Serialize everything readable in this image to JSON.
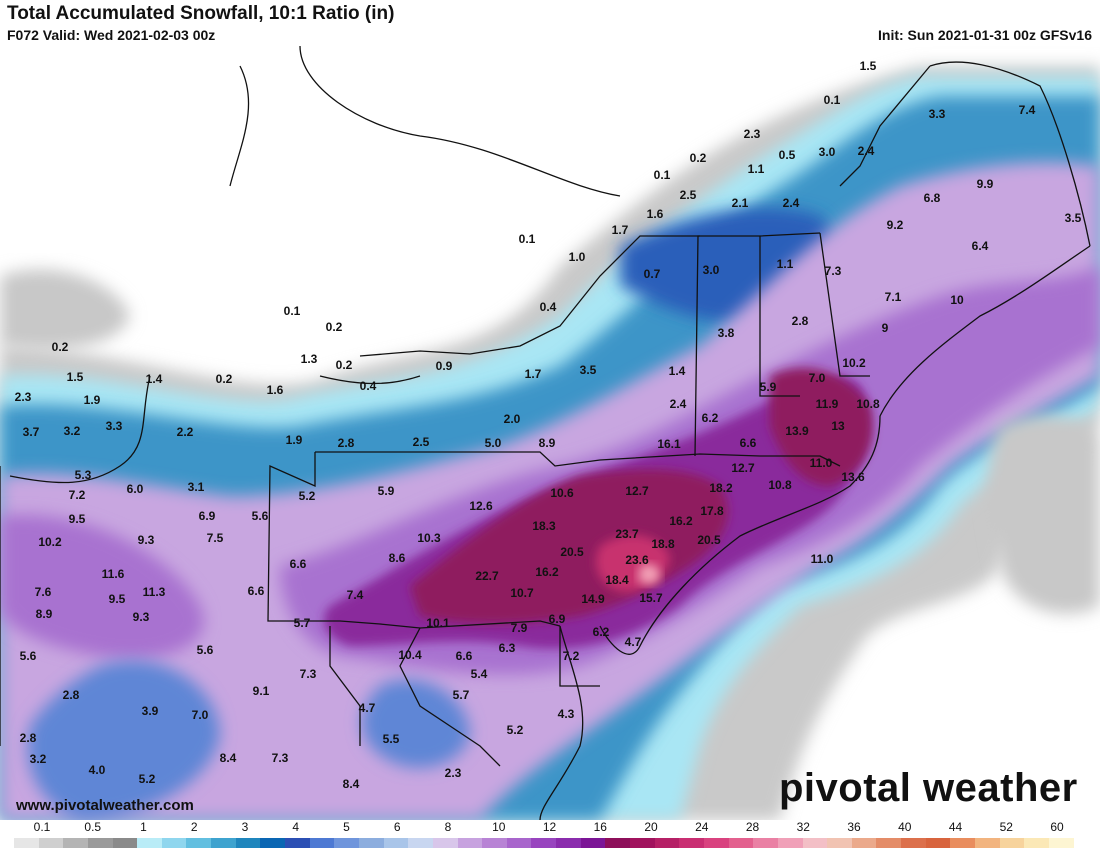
{
  "header": {
    "title": "Total Accumulated Snowfall, 10:1 Ratio (in)",
    "valid": "F072 Valid: Wed 2021-02-03 00z",
    "init": "Init: Sun 2021-01-31 00z GFSv16"
  },
  "footer": {
    "website": "www.pivotalweather.com",
    "brand": "pivotal weather"
  },
  "legend": {
    "labels": [
      "0.1",
      "0.5",
      "1",
      "2",
      "3",
      "4",
      "5",
      "6",
      "8",
      "10",
      "12",
      "16",
      "20",
      "24",
      "28",
      "32",
      "36",
      "40",
      "44",
      "52",
      "60"
    ],
    "colors": [
      "#e6e6e6",
      "#cfcfcf",
      "#b4b4b4",
      "#9a9a9a",
      "#8a8a8a",
      "#b9ecf7",
      "#8fd6ee",
      "#62bfe0",
      "#3ea3cf",
      "#1f86bd",
      "#0a66b3",
      "#2b4fb4",
      "#4d79d3",
      "#6f95dc",
      "#8cadde",
      "#a9c5e9",
      "#c8d6f0",
      "#d8c6ea",
      "#c7a2df",
      "#b883d5",
      "#a865cc",
      "#9844bf",
      "#8a2cad",
      "#7b1596",
      "#8d0f5a",
      "#a1135e",
      "#b52066",
      "#c92e72",
      "#d9427f",
      "#e3608e",
      "#ea80a4",
      "#f0a0b8",
      "#f3bfc6",
      "#f1c3b2",
      "#eba98b",
      "#e48c68",
      "#dc704c",
      "#d8643e",
      "#e98d5e",
      "#f2b47f",
      "#f7d39c",
      "#fbe8b6",
      "#fdf5d2"
    ],
    "icon": "gradient-swatch"
  },
  "map": {
    "values": [
      {
        "v": "1.5"
      },
      {
        "v": "0.1"
      },
      {
        "v": "3.3"
      },
      {
        "v": "7.4"
      },
      {
        "v": "2.3"
      },
      {
        "v": "0.2"
      },
      {
        "v": "0.5"
      },
      {
        "v": "3.0"
      },
      {
        "v": "2.4"
      },
      {
        "v": "0.1"
      },
      {
        "v": "1.1"
      },
      {
        "v": "9.9"
      },
      {
        "v": "2.5"
      },
      {
        "v": "2.1"
      },
      {
        "v": "2.4"
      },
      {
        "v": "6.8"
      },
      {
        "v": "1.6"
      },
      {
        "v": "9.2"
      },
      {
        "v": "3.5"
      },
      {
        "v": "1.7"
      },
      {
        "v": "0.1"
      },
      {
        "v": "1.0"
      },
      {
        "v": "6.4"
      },
      {
        "v": "3.0"
      },
      {
        "v": "1.1"
      },
      {
        "v": "0.7"
      },
      {
        "v": "7.3"
      },
      {
        "v": "7.1"
      },
      {
        "v": "10"
      },
      {
        "v": "0.4"
      },
      {
        "v": "0.1"
      },
      {
        "v": "0.2"
      },
      {
        "v": "2.8"
      },
      {
        "v": "9"
      },
      {
        "v": "3.8"
      },
      {
        "v": "0.2"
      },
      {
        "v": "1.3"
      },
      {
        "v": "0.2"
      },
      {
        "v": "0.9"
      },
      {
        "v": "10.2"
      },
      {
        "v": "1.5"
      },
      {
        "v": "1.4"
      },
      {
        "v": "0.2"
      },
      {
        "v": "1.7"
      },
      {
        "v": "3.5"
      },
      {
        "v": "1.4"
      },
      {
        "v": "7.0"
      },
      {
        "v": "5.9"
      },
      {
        "v": "0.4"
      },
      {
        "v": "1.6"
      },
      {
        "v": "2.3"
      },
      {
        "v": "1.9"
      },
      {
        "v": "11.9"
      },
      {
        "v": "10.8"
      },
      {
        "v": "2.4"
      },
      {
        "v": "3.7"
      },
      {
        "v": "3.2"
      },
      {
        "v": "3.3"
      },
      {
        "v": "2.2"
      },
      {
        "v": "6.2"
      },
      {
        "v": "13"
      },
      {
        "v": "13.9"
      },
      {
        "v": "2.0"
      },
      {
        "v": "1.9"
      },
      {
        "v": "2.8"
      },
      {
        "v": "2.5"
      },
      {
        "v": "5.0"
      },
      {
        "v": "8.9"
      },
      {
        "v": "6.6"
      },
      {
        "v": "16.1"
      },
      {
        "v": "12.7"
      },
      {
        "v": "11.0"
      },
      {
        "v": "5.3"
      },
      {
        "v": "6.0"
      },
      {
        "v": "3.1"
      },
      {
        "v": "13.6"
      },
      {
        "v": "7.2"
      },
      {
        "v": "5.2"
      },
      {
        "v": "5.9"
      },
      {
        "v": "10.6"
      },
      {
        "v": "12.7"
      },
      {
        "v": "18.2"
      },
      {
        "v": "10.8"
      },
      {
        "v": "9.5"
      },
      {
        "v": "6.9"
      },
      {
        "v": "5.6"
      },
      {
        "v": "12.6"
      },
      {
        "v": "17.8"
      },
      {
        "v": "10.2"
      },
      {
        "v": "7.5"
      },
      {
        "v": "16.2"
      },
      {
        "v": "9.3"
      },
      {
        "v": "10.3"
      },
      {
        "v": "18.3"
      },
      {
        "v": "23.7"
      },
      {
        "v": "20.5"
      },
      {
        "v": "11.0"
      },
      {
        "v": "20.5"
      },
      {
        "v": "18.8"
      },
      {
        "v": "8.6"
      },
      {
        "v": "23.6"
      },
      {
        "v": "11.6"
      },
      {
        "v": "6.6"
      },
      {
        "v": "22.7"
      },
      {
        "v": "16.2"
      },
      {
        "v": "18.4"
      },
      {
        "v": "7.6"
      },
      {
        "v": "9.5"
      },
      {
        "v": "11.3"
      },
      {
        "v": "6.6"
      },
      {
        "v": "7.4"
      },
      {
        "v": "10.7"
      },
      {
        "v": "14.9"
      },
      {
        "v": "15.7"
      },
      {
        "v": "8.9"
      },
      {
        "v": "9.3"
      },
      {
        "v": "5.7"
      },
      {
        "v": "10.1"
      },
      {
        "v": "7.9"
      },
      {
        "v": "6.9"
      },
      {
        "v": "6.2"
      },
      {
        "v": "5.6"
      },
      {
        "v": "6.3"
      },
      {
        "v": "6.6"
      },
      {
        "v": "10.4"
      },
      {
        "v": "4.7"
      },
      {
        "v": "5.6"
      },
      {
        "v": "7.2"
      },
      {
        "v": "7.3"
      },
      {
        "v": "5.4"
      },
      {
        "v": "2.8"
      },
      {
        "v": "9.1"
      },
      {
        "v": "5.7"
      },
      {
        "v": "3.9"
      },
      {
        "v": "4.7"
      },
      {
        "v": "7.0"
      },
      {
        "v": "4.3"
      },
      {
        "v": "2.8"
      },
      {
        "v": "5.2"
      },
      {
        "v": "5.5"
      },
      {
        "v": "3.2"
      },
      {
        "v": "8.4"
      },
      {
        "v": "7.3"
      },
      {
        "v": "4.0"
      },
      {
        "v": "5.2"
      },
      {
        "v": "2.3"
      },
      {
        "v": "8.4"
      }
    ]
  }
}
